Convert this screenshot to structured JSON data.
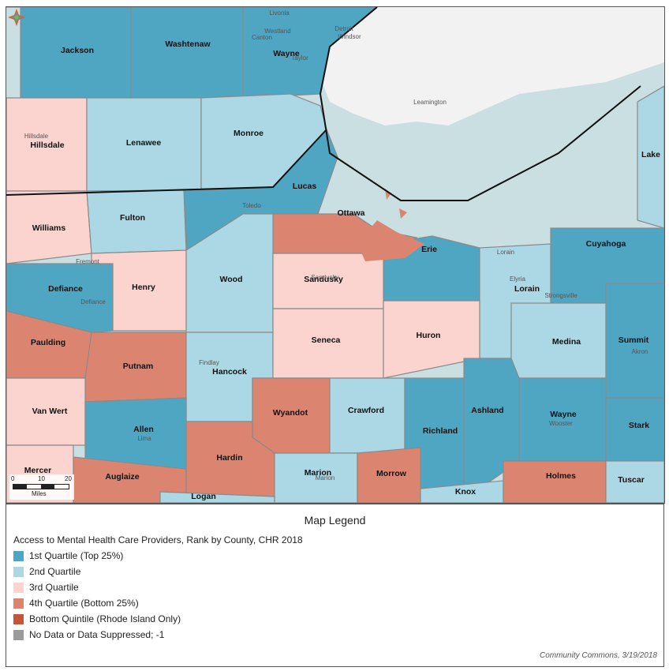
{
  "map": {
    "counties": [
      {
        "name": "Jackson",
        "class": "q1"
      },
      {
        "name": "Washtenaw",
        "class": "q1"
      },
      {
        "name": "Wayne",
        "class": "q1"
      },
      {
        "name": "Hillsdale",
        "class": "q3"
      },
      {
        "name": "Lenawee",
        "class": "q2"
      },
      {
        "name": "Monroe",
        "class": "q2"
      },
      {
        "name": "Lake",
        "class": "q2"
      },
      {
        "name": "Lucas",
        "class": "q1"
      },
      {
        "name": "Williams",
        "class": "q3"
      },
      {
        "name": "Fulton",
        "class": "q2"
      },
      {
        "name": "Ottawa",
        "class": "q4"
      },
      {
        "name": "Erie",
        "class": "q1"
      },
      {
        "name": "Defiance",
        "class": "q1"
      },
      {
        "name": "Henry",
        "class": "q3"
      },
      {
        "name": "Wood",
        "class": "q2"
      },
      {
        "name": "Sandusky",
        "class": "q3"
      },
      {
        "name": "Lorain",
        "class": "q2"
      },
      {
        "name": "Cuyahoga",
        "class": "q1"
      },
      {
        "name": "Paulding",
        "class": "q4"
      },
      {
        "name": "Putnam",
        "class": "q4"
      },
      {
        "name": "Hancock",
        "class": "q2"
      },
      {
        "name": "Seneca",
        "class": "q3"
      },
      {
        "name": "Huron",
        "class": "q3"
      },
      {
        "name": "Medina",
        "class": "q2"
      },
      {
        "name": "Summit",
        "class": "q1"
      },
      {
        "name": "Van Wert",
        "class": "q3"
      },
      {
        "name": "Allen",
        "class": "q1"
      },
      {
        "name": "Wyandot",
        "class": "q4"
      },
      {
        "name": "Crawford",
        "class": "q2"
      },
      {
        "name": "Richland",
        "class": "q1"
      },
      {
        "name": "Ashland",
        "class": "q1"
      },
      {
        "name": "Wayne",
        "class": "q1"
      },
      {
        "name": "Stark",
        "class": "q1"
      },
      {
        "name": "Mercer",
        "class": "q3"
      },
      {
        "name": "Auglaize",
        "class": "q4"
      },
      {
        "name": "Hardin",
        "class": "q4"
      },
      {
        "name": "Marion",
        "class": "q2"
      },
      {
        "name": "Morrow",
        "class": "q4"
      },
      {
        "name": "Knox",
        "class": "q2"
      },
      {
        "name": "Holmes",
        "class": "q4"
      },
      {
        "name": "Tuscar",
        "class": "q2"
      },
      {
        "name": "Logan",
        "class": "q2"
      }
    ],
    "places": [
      "Livonia",
      "Westland",
      "Canton",
      "Detroit",
      "Windsor",
      "Taylor",
      "Leamington",
      "Hillsdale",
      "Toledo",
      "Sandusky",
      "Lorain",
      "Elyria",
      "Strongsville",
      "Fremont",
      "Findlay",
      "Akron",
      "Wooster",
      "Lima",
      "Marion",
      "Defiance"
    ],
    "scale": {
      "ticks": [
        "0",
        "10",
        "20"
      ],
      "unit": "Miles"
    },
    "colors": {
      "q1": "#4ea6c3",
      "q2": "#acd8e5",
      "q3": "#fbd4cf",
      "q4": "#db8571",
      "bottom": "#c4543a",
      "nodata": "#9b9b9b",
      "water": "#c9dfe2",
      "ontario": "#f2f2f2"
    }
  },
  "legend": {
    "title": "Map Legend",
    "subtitle": "Access to Mental Health Care Providers, Rank by County, CHR 2018",
    "items": [
      {
        "label": "1st Quartile (Top 25%)",
        "color": "#4ea6c3"
      },
      {
        "label": "2nd Quartile",
        "color": "#acd8e5"
      },
      {
        "label": "3rd Quartile",
        "color": "#fbd4cf"
      },
      {
        "label": "4th Quartile (Bottom 25%)",
        "color": "#db8571"
      },
      {
        "label": "Bottom Quintile (Rhode Island Only)",
        "color": "#c4543a"
      },
      {
        "label": "No Data or Data Suppressed; -1",
        "color": "#9b9b9b"
      }
    ],
    "credit": "Community Commons, 3/19/2018"
  },
  "logo": {
    "icon": "community-commons-logo-icon"
  }
}
